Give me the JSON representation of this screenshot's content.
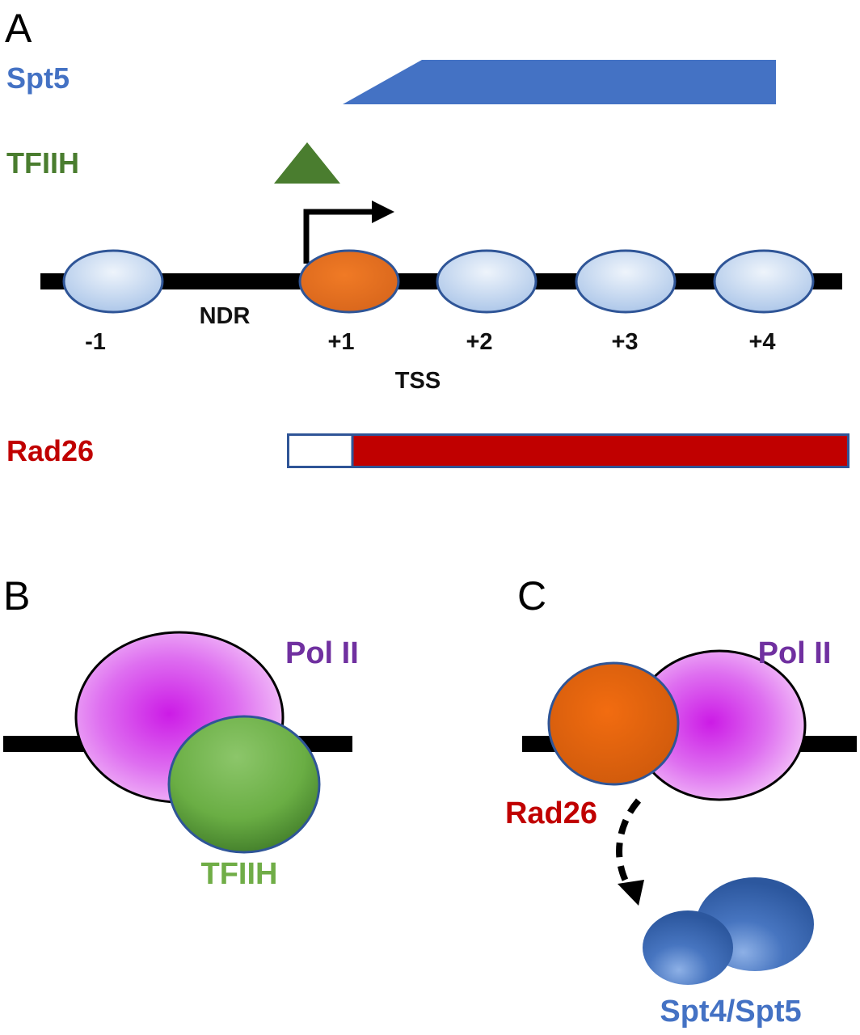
{
  "panels": {
    "a": {
      "letter": "A"
    },
    "b": {
      "letter": "B"
    },
    "c": {
      "letter": "C"
    }
  },
  "tracks": {
    "spt5": {
      "label": "Spt5",
      "color": "#4472c4"
    },
    "tfiih": {
      "label": "TFIIH",
      "color": "#4a7d2f"
    },
    "rad26": {
      "label": "Rad26",
      "color": "#c00000"
    }
  },
  "gene": {
    "ndr_label": "NDR",
    "tss_label": "TSS",
    "nucleosomes": [
      {
        "label": "-1",
        "highlight": false
      },
      {
        "label": "+1",
        "highlight": true
      },
      {
        "label": "+2",
        "highlight": false
      },
      {
        "label": "+3",
        "highlight": false
      },
      {
        "label": "+4",
        "highlight": false
      }
    ],
    "nucleosome_color": "#c5d9f1",
    "highlight_color": "#ed7d31"
  },
  "complex_b": {
    "pol_label": "Pol II",
    "partner_label": "TFIIH",
    "pol_color": "#cc33ff",
    "partner_color": "#70ad47",
    "pol_label_color": "#7030a0",
    "partner_label_color": "#70ad47"
  },
  "complex_c": {
    "pol_label": "Pol II",
    "partner_label": "Rad26",
    "product_label": "Spt4/Spt5",
    "pol_label_color": "#7030a0",
    "partner_label_color": "#c00000",
    "product_label_color": "#4472c4"
  }
}
